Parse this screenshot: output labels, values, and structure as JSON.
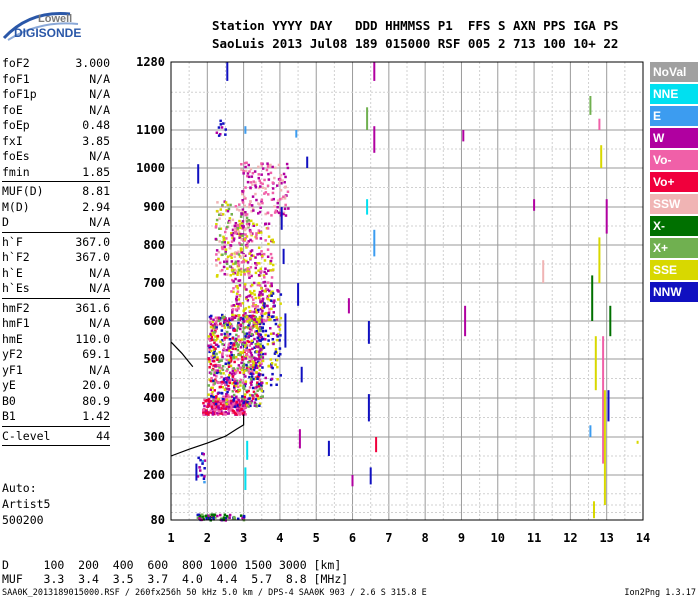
{
  "logo": {
    "top": "Lowell",
    "bottom": "DIGISONDE"
  },
  "header": {
    "row1": "Station YYYY DAY   DDD HHMMSS P1  FFS S AXN PPS IGA PS",
    "row2": "SaoLuis 2013 Jul08 189 015000 RSF 005 2 713 100 10+ 22"
  },
  "parameters": [
    {
      "label": "foF2",
      "value": "3.000"
    },
    {
      "label": "foF1",
      "value": "N/A"
    },
    {
      "label": "foF1p",
      "value": "N/A"
    },
    {
      "label": "foE",
      "value": "N/A"
    },
    {
      "label": "foEp",
      "value": "0.48"
    },
    {
      "label": "fxI",
      "value": "3.85"
    },
    {
      "label": "foEs",
      "value": "N/A"
    },
    {
      "label": "fmin",
      "value": "1.85"
    },
    {
      "sep": true
    },
    {
      "label": "MUF(D)",
      "value": "8.81"
    },
    {
      "label": "M(D)",
      "value": "2.94"
    },
    {
      "label": "D",
      "value": "N/A"
    },
    {
      "sep": true
    },
    {
      "label": "h`F",
      "value": "367.0"
    },
    {
      "label": "h`F2",
      "value": "367.0"
    },
    {
      "label": "h`E",
      "value": "N/A"
    },
    {
      "label": "h`Es",
      "value": "N/A"
    },
    {
      "sep": true
    },
    {
      "label": "hmF2",
      "value": "361.6"
    },
    {
      "label": "hmF1",
      "value": "N/A"
    },
    {
      "label": "hmE",
      "value": "110.0"
    },
    {
      "label": "yF2",
      "value": "69.1"
    },
    {
      "label": "yF1",
      "value": "N/A"
    },
    {
      "label": "yE",
      "value": "20.0"
    },
    {
      "label": "B0",
      "value": "80.9"
    },
    {
      "label": "B1",
      "value": "1.42"
    },
    {
      "sep": true
    },
    {
      "label": "C-level",
      "value": "44"
    },
    {
      "sep": true
    }
  ],
  "autoscaling": {
    "line1": "Auto:",
    "line2": "Artist5",
    "line3": "500200"
  },
  "legend": [
    {
      "label": "NoVal",
      "color": "#a0a0a0"
    },
    {
      "label": "NNE",
      "color": "#00e0f0"
    },
    {
      "label": "E",
      "color": "#3c9cf0"
    },
    {
      "label": "W",
      "color": "#b000a0"
    },
    {
      "label": "Vo-",
      "color": "#f060a8"
    },
    {
      "label": "Vo+",
      "color": "#f0003c"
    },
    {
      "label": "SSW",
      "color": "#f0b4b4"
    },
    {
      "label": "X-",
      "color": "#007000"
    },
    {
      "label": "X+",
      "color": "#70b050"
    },
    {
      "label": "SSE",
      "color": "#d8d800"
    },
    {
      "label": "NNW",
      "color": "#1010c0"
    }
  ],
  "muf_table": {
    "d_row": "D     100  200  400  600  800 1000 1500 3000 [km]",
    "muf_row": "MUF   3.3  3.4  3.5  3.7  4.0  4.4  5.7  8.8 [MHz]"
  },
  "footer": "SAA0K_2013189015000.RSF / 260fx256h 50 kHz 5.0 km / DPS-4 SAA0K 903 / 2.6 S 315.8 E",
  "version": "Ion2Png 1.3.17",
  "chart_data": {
    "type": "scatter",
    "x_label": "",
    "y_label": "",
    "xlim": [
      1,
      14
    ],
    "ylim": [
      80,
      1280
    ],
    "x_ticks": [
      1,
      2,
      3,
      4,
      5,
      6,
      7,
      8,
      9,
      10,
      11,
      12,
      13,
      14
    ],
    "y_ticks": [
      80,
      200,
      300,
      400,
      500,
      600,
      700,
      800,
      900,
      1000,
      1100,
      1280
    ],
    "y_scale": "nonlinear",
    "grid": true,
    "x_minor_step": 0.5,
    "y_minor": [
      100,
      120,
      150,
      250,
      350,
      450,
      550,
      650,
      750,
      850,
      950,
      1050,
      1150,
      1200
    ],
    "traces": [
      {
        "name": "virtual height profile",
        "color": "#000000",
        "x": [
          1.0,
          1.5,
          2.0,
          2.5,
          2.8,
          3.0,
          3.0
        ],
        "y": [
          250,
          268,
          284,
          302,
          320,
          331,
          358
        ]
      },
      {
        "name": "side branch",
        "color": "#000000",
        "x": [
          1.0,
          1.3,
          1.6
        ],
        "y": [
          545,
          515,
          480
        ]
      }
    ],
    "clusters": [
      {
        "x": [
          1.85,
          3.05
        ],
        "y": [
          360,
          400
        ],
        "colors": [
          "#f0003c",
          "#f060a8",
          "#b000a0"
        ],
        "n": 260
      },
      {
        "x": [
          2.0,
          3.5
        ],
        "y": [
          380,
          620
        ],
        "colors": [
          "#b000a0",
          "#f0003c",
          "#d8d800",
          "#70b050",
          "#1010c0",
          "#f060a8"
        ],
        "n": 760
      },
      {
        "x": [
          2.6,
          3.8
        ],
        "y": [
          600,
          860
        ],
        "colors": [
          "#b000a0",
          "#f060a8",
          "#d8d800"
        ],
        "n": 300
      },
      {
        "x": [
          2.2,
          3.2
        ],
        "y": [
          720,
          920
        ],
        "colors": [
          "#f0b4b4",
          "#f060a8",
          "#d8d800",
          "#70b050",
          "#b000a0"
        ],
        "n": 180
      },
      {
        "x": [
          2.9,
          4.2
        ],
        "y": [
          880,
          1020
        ],
        "colors": [
          "#f0b4b4",
          "#f060a8",
          "#b000a0"
        ],
        "n": 140
      },
      {
        "x": [
          3.3,
          4.0
        ],
        "y": [
          430,
          700
        ],
        "colors": [
          "#d8d800",
          "#b000a0",
          "#1010c0"
        ],
        "n": 140
      },
      {
        "x": [
          1.7,
          1.9
        ],
        "y": [
          180,
          260
        ],
        "colors": [
          "#1010c0",
          "#3c9cf0",
          "#b000a0"
        ],
        "n": 18
      },
      {
        "x": [
          1.7,
          3.0
        ],
        "y": [
          82,
          98
        ],
        "colors": [
          "#007000",
          "#70b050",
          "#1010c0",
          "#b000a0"
        ],
        "n": 70
      },
      {
        "x": [
          2.1,
          2.5
        ],
        "y": [
          1080,
          1130
        ],
        "colors": [
          "#1010c0",
          "#b000a0"
        ],
        "n": 10
      }
    ],
    "vertical_streaks": [
      {
        "x": 1.75,
        "y": [
          960,
          1010
        ],
        "color": "#1010c0"
      },
      {
        "x": 1.7,
        "y": [
          185,
          230
        ],
        "color": "#1010c0"
      },
      {
        "x": 2.55,
        "y": [
          1230,
          1280
        ],
        "color": "#1010c0"
      },
      {
        "x": 3.05,
        "y": [
          1090,
          1110
        ],
        "color": "#3c9cf0"
      },
      {
        "x": 4.45,
        "y": [
          1080,
          1100
        ],
        "color": "#3c9cf0"
      },
      {
        "x": 4.05,
        "y": [
          840,
          900
        ],
        "color": "#1010c0"
      },
      {
        "x": 4.1,
        "y": [
          750,
          790
        ],
        "color": "#1010c0"
      },
      {
        "x": 4.15,
        "y": [
          530,
          620
        ],
        "color": "#1010c0"
      },
      {
        "x": 4.5,
        "y": [
          640,
          700
        ],
        "color": "#1010c0"
      },
      {
        "x": 4.55,
        "y": [
          270,
          320
        ],
        "color": "#b000a0"
      },
      {
        "x": 4.6,
        "y": [
          440,
          480
        ],
        "color": "#1010c0"
      },
      {
        "x": 3.1,
        "y": [
          240,
          290
        ],
        "color": "#00e0f0"
      },
      {
        "x": 3.05,
        "y": [
          160,
          220
        ],
        "color": "#00e0f0"
      },
      {
        "x": 4.75,
        "y": [
          1000,
          1030
        ],
        "color": "#1010c0"
      },
      {
        "x": 5.35,
        "y": [
          250,
          290
        ],
        "color": "#1010c0"
      },
      {
        "x": 5.9,
        "y": [
          620,
          660
        ],
        "color": "#b000a0"
      },
      {
        "x": 6.0,
        "y": [
          170,
          200
        ],
        "color": "#b000a0"
      },
      {
        "x": 6.4,
        "y": [
          1100,
          1160
        ],
        "color": "#70b050"
      },
      {
        "x": 6.4,
        "y": [
          880,
          920
        ],
        "color": "#00e0f0"
      },
      {
        "x": 6.45,
        "y": [
          540,
          600
        ],
        "color": "#1010c0"
      },
      {
        "x": 6.45,
        "y": [
          340,
          410
        ],
        "color": "#1010c0"
      },
      {
        "x": 6.5,
        "y": [
          175,
          220
        ],
        "color": "#1010c0"
      },
      {
        "x": 6.6,
        "y": [
          1040,
          1110
        ],
        "color": "#b000a0"
      },
      {
        "x": 6.6,
        "y": [
          770,
          840
        ],
        "color": "#3c9cf0"
      },
      {
        "x": 6.65,
        "y": [
          260,
          300
        ],
        "color": "#f0003c"
      },
      {
        "x": 6.6,
        "y": [
          1230,
          1280
        ],
        "color": "#b000a0"
      },
      {
        "x": 9.1,
        "y": [
          560,
          640
        ],
        "color": "#b000a0"
      },
      {
        "x": 9.05,
        "y": [
          1070,
          1100
        ],
        "color": "#b000a0"
      },
      {
        "x": 11.25,
        "y": [
          700,
          760
        ],
        "color": "#f0b4b4"
      },
      {
        "x": 11.0,
        "y": [
          890,
          920
        ],
        "color": "#b000a0"
      },
      {
        "x": 12.55,
        "y": [
          1140,
          1190
        ],
        "color": "#70b050"
      },
      {
        "x": 12.6,
        "y": [
          600,
          720
        ],
        "color": "#007000"
      },
      {
        "x": 12.7,
        "y": [
          420,
          560
        ],
        "color": "#d8d800"
      },
      {
        "x": 12.8,
        "y": [
          700,
          820
        ],
        "color": "#d8d800"
      },
      {
        "x": 12.9,
        "y": [
          230,
          560
        ],
        "color": "#f060a8"
      },
      {
        "x": 12.95,
        "y": [
          120,
          420
        ],
        "color": "#d8d800"
      },
      {
        "x": 13.0,
        "y": [
          830,
          920
        ],
        "color": "#b000a0"
      },
      {
        "x": 13.1,
        "y": [
          560,
          640
        ],
        "color": "#007000"
      },
      {
        "x": 13.05,
        "y": [
          340,
          420
        ],
        "color": "#1010c0"
      },
      {
        "x": 12.65,
        "y": [
          85,
          130
        ],
        "color": "#d8d800"
      },
      {
        "x": 12.8,
        "y": [
          1100,
          1130
        ],
        "color": "#f060a8"
      },
      {
        "x": 12.85,
        "y": [
          1000,
          1060
        ],
        "color": "#d8d800"
      },
      {
        "x": 12.55,
        "y": [
          300,
          330
        ],
        "color": "#3c9cf0"
      },
      {
        "x": 13.85,
        "y": [
          282,
          290
        ],
        "color": "#d8d800"
      }
    ]
  }
}
